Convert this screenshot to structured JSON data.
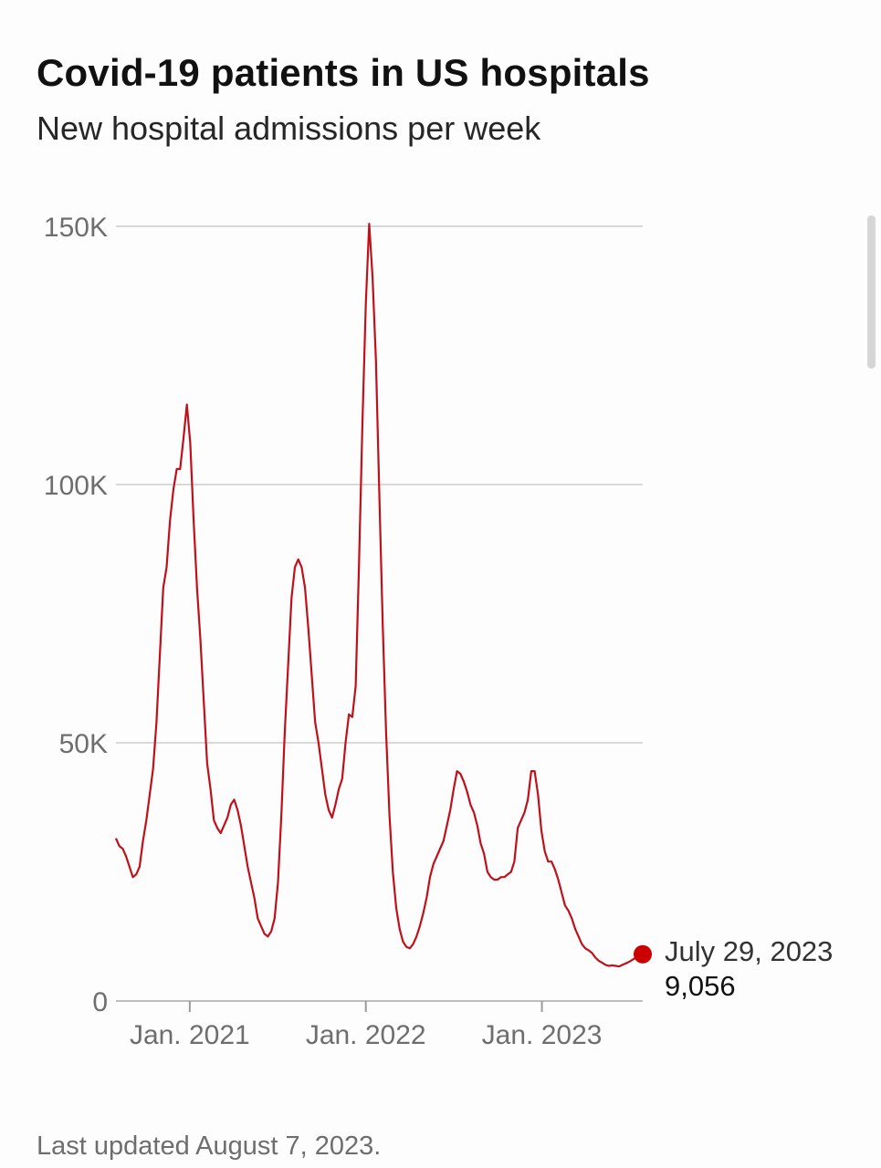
{
  "header": {
    "title": "Covid-19 patients in US hospitals",
    "subtitle": "New hospital admissions per week"
  },
  "footer": {
    "note": "Last updated August 7, 2023."
  },
  "colors": {
    "line": "#c0101a",
    "grid": "#d9d9d9",
    "axis_text": "#6e6e6e",
    "label": "#333333"
  },
  "chart_data": {
    "type": "line",
    "title": "Covid-19 patients in US hospitals",
    "subtitle": "New hospital admissions per week",
    "xlabel": "",
    "ylabel": "",
    "ylim": [
      0,
      150000
    ],
    "xlim": [
      "2020-08-01",
      "2023-07-29"
    ],
    "grid": true,
    "y_ticks": [
      {
        "value": 0,
        "label": "0"
      },
      {
        "value": 50000,
        "label": "50K"
      },
      {
        "value": 100000,
        "label": "100K"
      },
      {
        "value": 150000,
        "label": "150K"
      }
    ],
    "x_ticks": [
      {
        "value": "2021-01-01",
        "label": "Jan. 2021"
      },
      {
        "value": "2022-01-01",
        "label": "Jan. 2022"
      },
      {
        "value": "2023-01-01",
        "label": "Jan. 2023"
      }
    ],
    "series": [
      {
        "color": "#c0101a",
        "points": [
          [
            "2020-08-01",
            31500
          ],
          [
            "2020-08-08",
            30000
          ],
          [
            "2020-08-15",
            29500
          ],
          [
            "2020-08-22",
            28000
          ],
          [
            "2020-08-29",
            26000
          ],
          [
            "2020-09-05",
            24000
          ],
          [
            "2020-09-12",
            24500
          ],
          [
            "2020-09-19",
            26000
          ],
          [
            "2020-09-26",
            31000
          ],
          [
            "2020-10-03",
            35000
          ],
          [
            "2020-10-10",
            40000
          ],
          [
            "2020-10-17",
            45000
          ],
          [
            "2020-10-24",
            54000
          ],
          [
            "2020-10-31",
            67000
          ],
          [
            "2020-11-07",
            80000
          ],
          [
            "2020-11-14",
            84000
          ],
          [
            "2020-11-21",
            93000
          ],
          [
            "2020-11-28",
            99000
          ],
          [
            "2020-12-05",
            103000
          ],
          [
            "2020-12-12",
            103000
          ],
          [
            "2020-12-19",
            109000
          ],
          [
            "2020-12-26",
            115500
          ],
          [
            "2021-01-02",
            108000
          ],
          [
            "2021-01-09",
            93000
          ],
          [
            "2021-01-16",
            80000
          ],
          [
            "2021-01-23",
            70000
          ],
          [
            "2021-01-30",
            58000
          ],
          [
            "2021-02-06",
            46000
          ],
          [
            "2021-02-13",
            41000
          ],
          [
            "2021-02-20",
            35000
          ],
          [
            "2021-02-27",
            33500
          ],
          [
            "2021-03-06",
            32500
          ],
          [
            "2021-03-13",
            34000
          ],
          [
            "2021-03-20",
            35500
          ],
          [
            "2021-03-27",
            38000
          ],
          [
            "2021-04-03",
            39000
          ],
          [
            "2021-04-10",
            37000
          ],
          [
            "2021-04-17",
            34000
          ],
          [
            "2021-04-24",
            30000
          ],
          [
            "2021-05-01",
            26000
          ],
          [
            "2021-05-08",
            23000
          ],
          [
            "2021-05-15",
            20000
          ],
          [
            "2021-05-22",
            16000
          ],
          [
            "2021-05-29",
            14500
          ],
          [
            "2021-06-05",
            13000
          ],
          [
            "2021-06-12",
            12500
          ],
          [
            "2021-06-19",
            13500
          ],
          [
            "2021-06-26",
            16000
          ],
          [
            "2021-07-03",
            23000
          ],
          [
            "2021-07-10",
            36000
          ],
          [
            "2021-07-17",
            52000
          ],
          [
            "2021-07-24",
            65000
          ],
          [
            "2021-07-31",
            78000
          ],
          [
            "2021-08-07",
            84000
          ],
          [
            "2021-08-14",
            85500
          ],
          [
            "2021-08-21",
            84000
          ],
          [
            "2021-08-28",
            80000
          ],
          [
            "2021-09-04",
            72000
          ],
          [
            "2021-09-11",
            63000
          ],
          [
            "2021-09-18",
            54000
          ],
          [
            "2021-09-25",
            50000
          ],
          [
            "2021-10-02",
            45000
          ],
          [
            "2021-10-09",
            40000
          ],
          [
            "2021-10-16",
            37000
          ],
          [
            "2021-10-23",
            35500
          ],
          [
            "2021-10-30",
            38000
          ],
          [
            "2021-11-06",
            41000
          ],
          [
            "2021-11-13",
            43000
          ],
          [
            "2021-11-20",
            50000
          ],
          [
            "2021-11-27",
            55500
          ],
          [
            "2021-12-04",
            55000
          ],
          [
            "2021-12-11",
            61000
          ],
          [
            "2021-12-18",
            85000
          ],
          [
            "2021-12-25",
            112000
          ],
          [
            "2022-01-01",
            135000
          ],
          [
            "2022-01-08",
            150500
          ],
          [
            "2022-01-15",
            140000
          ],
          [
            "2022-01-22",
            124000
          ],
          [
            "2022-01-29",
            98000
          ],
          [
            "2022-02-05",
            73000
          ],
          [
            "2022-02-12",
            52000
          ],
          [
            "2022-02-19",
            36000
          ],
          [
            "2022-02-26",
            25000
          ],
          [
            "2022-03-05",
            18000
          ],
          [
            "2022-03-12",
            14000
          ],
          [
            "2022-03-19",
            11500
          ],
          [
            "2022-03-26",
            10500
          ],
          [
            "2022-04-02",
            10200
          ],
          [
            "2022-04-09",
            11000
          ],
          [
            "2022-04-16",
            12500
          ],
          [
            "2022-04-23",
            14500
          ],
          [
            "2022-04-30",
            17000
          ],
          [
            "2022-05-07",
            20000
          ],
          [
            "2022-05-14",
            24000
          ],
          [
            "2022-05-21",
            26500
          ],
          [
            "2022-05-28",
            28000
          ],
          [
            "2022-06-04",
            29500
          ],
          [
            "2022-06-11",
            31000
          ],
          [
            "2022-06-18",
            34000
          ],
          [
            "2022-06-25",
            37000
          ],
          [
            "2022-07-02",
            41000
          ],
          [
            "2022-07-09",
            44500
          ],
          [
            "2022-07-16",
            44000
          ],
          [
            "2022-07-23",
            42500
          ],
          [
            "2022-07-30",
            40500
          ],
          [
            "2022-08-06",
            38000
          ],
          [
            "2022-08-13",
            36500
          ],
          [
            "2022-08-20",
            34000
          ],
          [
            "2022-08-27",
            30500
          ],
          [
            "2022-09-03",
            28500
          ],
          [
            "2022-09-10",
            25000
          ],
          [
            "2022-09-17",
            24000
          ],
          [
            "2022-09-24",
            23500
          ],
          [
            "2022-10-01",
            23500
          ],
          [
            "2022-10-08",
            24000
          ],
          [
            "2022-10-15",
            24000
          ],
          [
            "2022-10-22",
            24500
          ],
          [
            "2022-10-29",
            25000
          ],
          [
            "2022-11-05",
            27000
          ],
          [
            "2022-11-12",
            33500
          ],
          [
            "2022-11-19",
            35000
          ],
          [
            "2022-11-26",
            36500
          ],
          [
            "2022-12-03",
            39000
          ],
          [
            "2022-12-10",
            44500
          ],
          [
            "2022-12-17",
            44500
          ],
          [
            "2022-12-24",
            40000
          ],
          [
            "2022-12-31",
            33000
          ],
          [
            "2023-01-07",
            29000
          ],
          [
            "2023-01-14",
            27000
          ],
          [
            "2023-01-21",
            27000
          ],
          [
            "2023-01-28",
            25500
          ],
          [
            "2023-02-04",
            23500
          ],
          [
            "2023-02-11",
            21000
          ],
          [
            "2023-02-18",
            18500
          ],
          [
            "2023-02-25",
            17500
          ],
          [
            "2023-03-04",
            16000
          ],
          [
            "2023-03-11",
            14000
          ],
          [
            "2023-03-18",
            12500
          ],
          [
            "2023-03-25",
            11000
          ],
          [
            "2023-04-01",
            10200
          ],
          [
            "2023-04-08",
            9800
          ],
          [
            "2023-04-15",
            9300
          ],
          [
            "2023-04-22",
            8400
          ],
          [
            "2023-04-29",
            7800
          ],
          [
            "2023-05-06",
            7400
          ],
          [
            "2023-05-13",
            7000
          ],
          [
            "2023-05-20",
            6800
          ],
          [
            "2023-05-27",
            6900
          ],
          [
            "2023-06-03",
            6800
          ],
          [
            "2023-06-10",
            6700
          ],
          [
            "2023-06-17",
            7000
          ],
          [
            "2023-06-24",
            7300
          ],
          [
            "2023-07-01",
            7600
          ],
          [
            "2023-07-08",
            8000
          ],
          [
            "2023-07-15",
            8400
          ],
          [
            "2023-07-22",
            8700
          ],
          [
            "2023-07-29",
            9056
          ]
        ]
      }
    ],
    "annotations": [
      {
        "x": "2023-07-29",
        "y": 9056,
        "date_label": "July 29, 2023",
        "value_label": "9,056"
      }
    ]
  }
}
